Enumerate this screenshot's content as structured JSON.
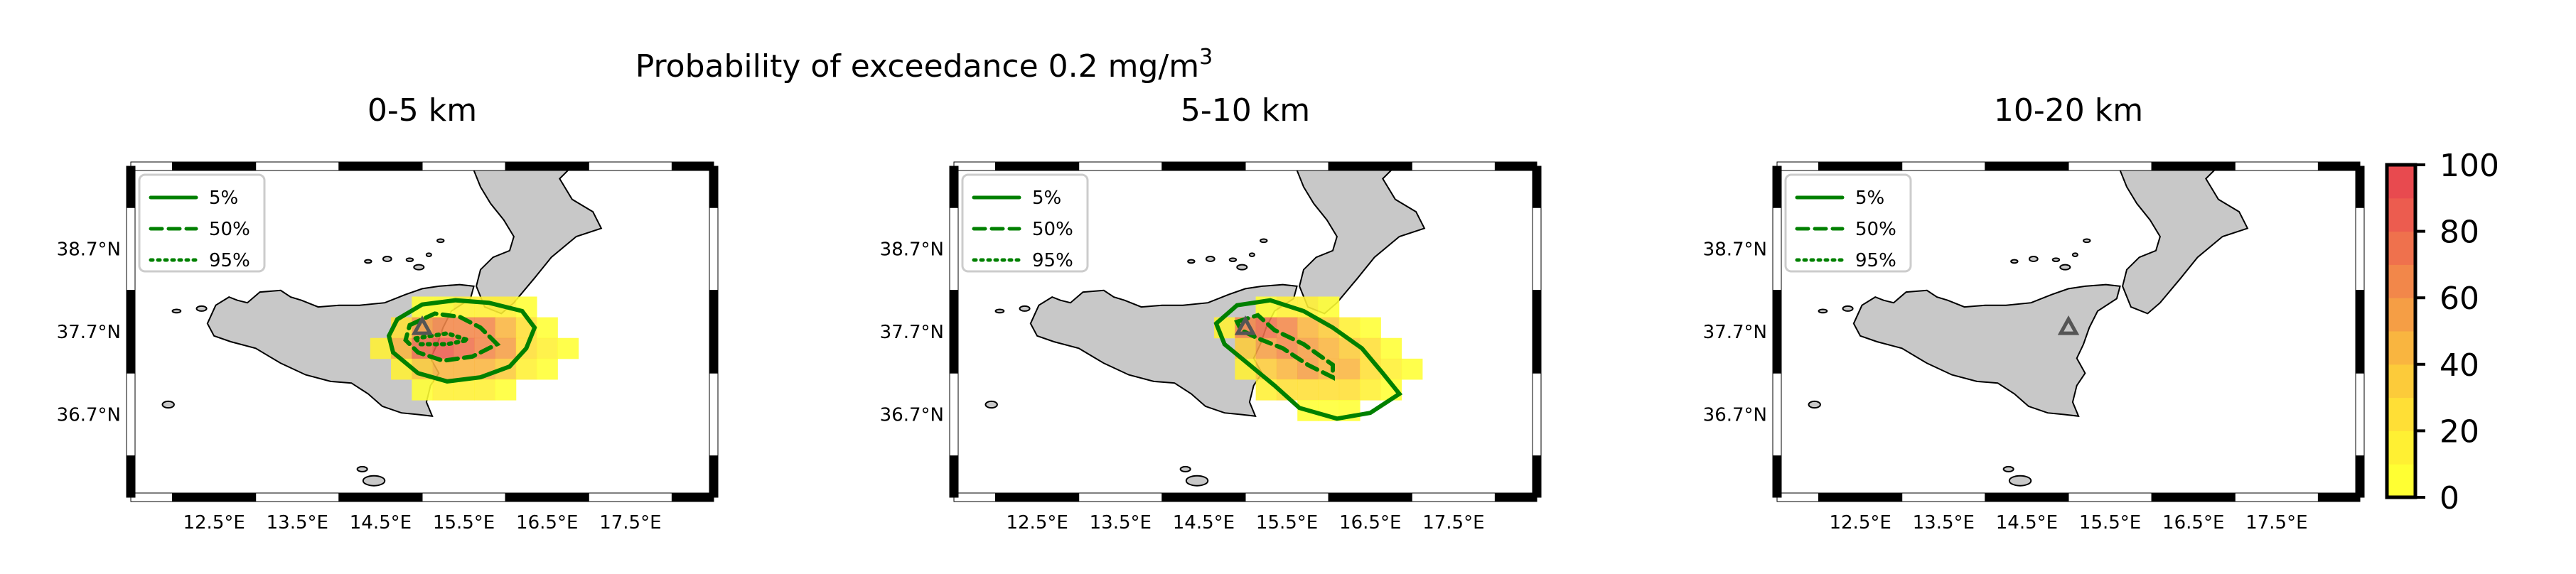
{
  "figure": {
    "suptitle_line1": "Probability of exceedance 0.2 mg/m",
    "suptitle_sup": "3"
  },
  "colors": {
    "land": "#c8c8c8",
    "coast": "#000000",
    "contour": "#008000",
    "volcano": "#555555",
    "frame_dark": "#000000",
    "frame_light": "#ffffff",
    "colormap": [
      "#ffff33",
      "#fff033",
      "#ffdf36",
      "#fccb3a",
      "#f9b540",
      "#f59e45",
      "#f2874a",
      "#ef714d",
      "#ec5c4f",
      "#e84a4f"
    ]
  },
  "legend": {
    "entries": [
      {
        "label": "5%",
        "style": "solid"
      },
      {
        "label": "50%",
        "style": "dashed"
      },
      {
        "label": "95%",
        "style": "dotted"
      }
    ]
  },
  "colorbar": {
    "ticks": [
      "0",
      "20",
      "40",
      "60",
      "80",
      "100"
    ],
    "range": [
      0,
      100
    ]
  },
  "chart_data": [
    {
      "type": "heatmap",
      "title": "0-5 km",
      "xlim": [
        11.5,
        18.5
      ],
      "ylim": [
        35.7,
        39.7
      ],
      "xticks": [
        "12.5°E",
        "13.5°E",
        "14.5°E",
        "15.5°E",
        "16.5°E",
        "17.5°E"
      ],
      "yticks": [
        "38.7°N",
        "37.7°N",
        "36.7°N"
      ],
      "grid_step_deg": 0.25,
      "cells": [
        [
          15.0,
          38.0,
          5
        ],
        [
          15.25,
          38.0,
          5
        ],
        [
          15.5,
          38.0,
          10
        ],
        [
          15.75,
          38.0,
          15
        ],
        [
          16.0,
          38.0,
          10
        ],
        [
          16.25,
          38.0,
          5
        ],
        [
          14.75,
          37.75,
          20
        ],
        [
          15.0,
          37.75,
          50
        ],
        [
          15.25,
          37.75,
          60
        ],
        [
          15.5,
          37.75,
          65
        ],
        [
          15.75,
          37.75,
          60
        ],
        [
          16.0,
          37.75,
          45
        ],
        [
          16.25,
          37.75,
          20
        ],
        [
          16.5,
          37.75,
          5
        ],
        [
          14.5,
          37.5,
          10
        ],
        [
          14.75,
          37.5,
          45
        ],
        [
          15.0,
          37.5,
          75
        ],
        [
          15.25,
          37.5,
          80
        ],
        [
          15.5,
          37.5,
          70
        ],
        [
          15.75,
          37.5,
          60
        ],
        [
          16.0,
          37.5,
          50
        ],
        [
          16.25,
          37.5,
          25
        ],
        [
          16.5,
          37.5,
          10
        ],
        [
          16.75,
          37.5,
          5
        ],
        [
          14.75,
          37.25,
          15
        ],
        [
          15.0,
          37.25,
          35
        ],
        [
          15.25,
          37.25,
          45
        ],
        [
          15.5,
          37.25,
          45
        ],
        [
          15.75,
          37.25,
          40
        ],
        [
          16.0,
          37.25,
          30
        ],
        [
          16.25,
          37.25,
          15
        ],
        [
          16.5,
          37.25,
          5
        ],
        [
          15.0,
          37.0,
          5
        ],
        [
          15.25,
          37.0,
          10
        ],
        [
          15.5,
          37.0,
          15
        ],
        [
          15.75,
          37.0,
          10
        ],
        [
          16.0,
          37.0,
          5
        ]
      ]
    },
    {
      "type": "heatmap",
      "title": "5-10 km",
      "xlim": [
        11.5,
        18.5
      ],
      "ylim": [
        35.7,
        39.7
      ],
      "xticks": [
        "12.5°E",
        "13.5°E",
        "14.5°E",
        "15.5°E",
        "16.5°E",
        "17.5°E"
      ],
      "yticks": [
        "38.7°N",
        "37.7°N",
        "36.7°N"
      ],
      "grid_step_deg": 0.25,
      "cells": [
        [
          15.25,
          38.0,
          5
        ],
        [
          15.5,
          38.0,
          10
        ],
        [
          15.75,
          38.0,
          10
        ],
        [
          16.0,
          38.0,
          5
        ],
        [
          14.75,
          37.75,
          15
        ],
        [
          15.0,
          37.75,
          60
        ],
        [
          15.25,
          37.75,
          75
        ],
        [
          15.5,
          37.75,
          65
        ],
        [
          15.75,
          37.75,
          45
        ],
        [
          16.0,
          37.75,
          30
        ],
        [
          16.25,
          37.75,
          15
        ],
        [
          16.5,
          37.75,
          5
        ],
        [
          15.0,
          37.5,
          30
        ],
        [
          15.25,
          37.5,
          55
        ],
        [
          15.5,
          37.5,
          60
        ],
        [
          15.75,
          37.5,
          55
        ],
        [
          16.0,
          37.5,
          45
        ],
        [
          16.25,
          37.5,
          35
        ],
        [
          16.5,
          37.5,
          20
        ],
        [
          16.75,
          37.5,
          5
        ],
        [
          15.0,
          37.25,
          10
        ],
        [
          15.25,
          37.25,
          30
        ],
        [
          15.5,
          37.25,
          45
        ],
        [
          15.75,
          37.25,
          50
        ],
        [
          16.0,
          37.25,
          45
        ],
        [
          16.25,
          37.25,
          40
        ],
        [
          16.5,
          37.25,
          25
        ],
        [
          16.75,
          37.25,
          10
        ],
        [
          17.0,
          37.25,
          5
        ],
        [
          15.25,
          37.0,
          10
        ],
        [
          15.5,
          37.0,
          20
        ],
        [
          15.75,
          37.0,
          25
        ],
        [
          16.0,
          37.0,
          25
        ],
        [
          16.25,
          37.0,
          20
        ],
        [
          16.5,
          37.0,
          15
        ],
        [
          16.75,
          37.0,
          5
        ],
        [
          15.75,
          36.75,
          5
        ],
        [
          16.0,
          36.75,
          5
        ],
        [
          16.25,
          36.75,
          5
        ]
      ]
    },
    {
      "type": "heatmap",
      "title": "10-20 km",
      "xlim": [
        11.5,
        18.5
      ],
      "ylim": [
        35.7,
        39.7
      ],
      "xticks": [
        "12.5°E",
        "13.5°E",
        "14.5°E",
        "15.5°E",
        "16.5°E",
        "17.5°E"
      ],
      "yticks": [
        "38.7°N",
        "37.7°N",
        "36.7°N"
      ],
      "grid_step_deg": 0.25,
      "cells": []
    }
  ]
}
